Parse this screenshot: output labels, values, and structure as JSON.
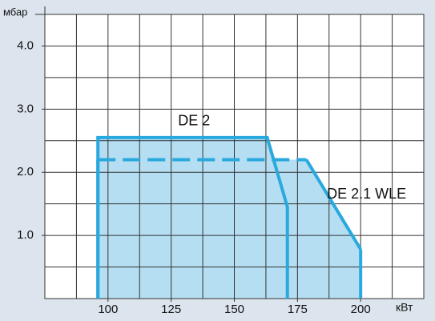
{
  "chart_data": {
    "type": "area",
    "y_label": "мбар",
    "x_label": "кВт",
    "xlim": [
      75,
      225
    ],
    "xticks": [
      100,
      125,
      150,
      175,
      200
    ],
    "xgrid": [
      87.5,
      100,
      112.5,
      125,
      137.5,
      150,
      162.5,
      175,
      187.5,
      200,
      212.5
    ],
    "ylim": [
      0,
      4.5
    ],
    "yticks": [
      {
        "value": 1,
        "label": "1.0"
      },
      {
        "value": 2,
        "label": "2.0"
      },
      {
        "value": 3,
        "label": "3.0"
      },
      {
        "value": 4,
        "label": "4.0"
      }
    ],
    "ygrid": [
      0.5,
      1,
      1.5,
      2,
      2.5,
      3,
      3.5,
      4
    ],
    "grid": true,
    "fill_color": "#b5def2",
    "series": [
      {
        "name": "DE 2",
        "color": "#2aa9de",
        "dashed": false,
        "x": [
          96,
          96,
          163,
          171,
          171
        ],
        "values": [
          0,
          2.55,
          2.55,
          1.45,
          0
        ]
      },
      {
        "name": "DE 2.1 WLE",
        "color": "#2aa9de",
        "dashed": true,
        "x": [
          96,
          96,
          178.5,
          200,
          200
        ],
        "values": [
          0,
          2.2,
          2.2,
          0.78,
          0
        ]
      }
    ]
  }
}
